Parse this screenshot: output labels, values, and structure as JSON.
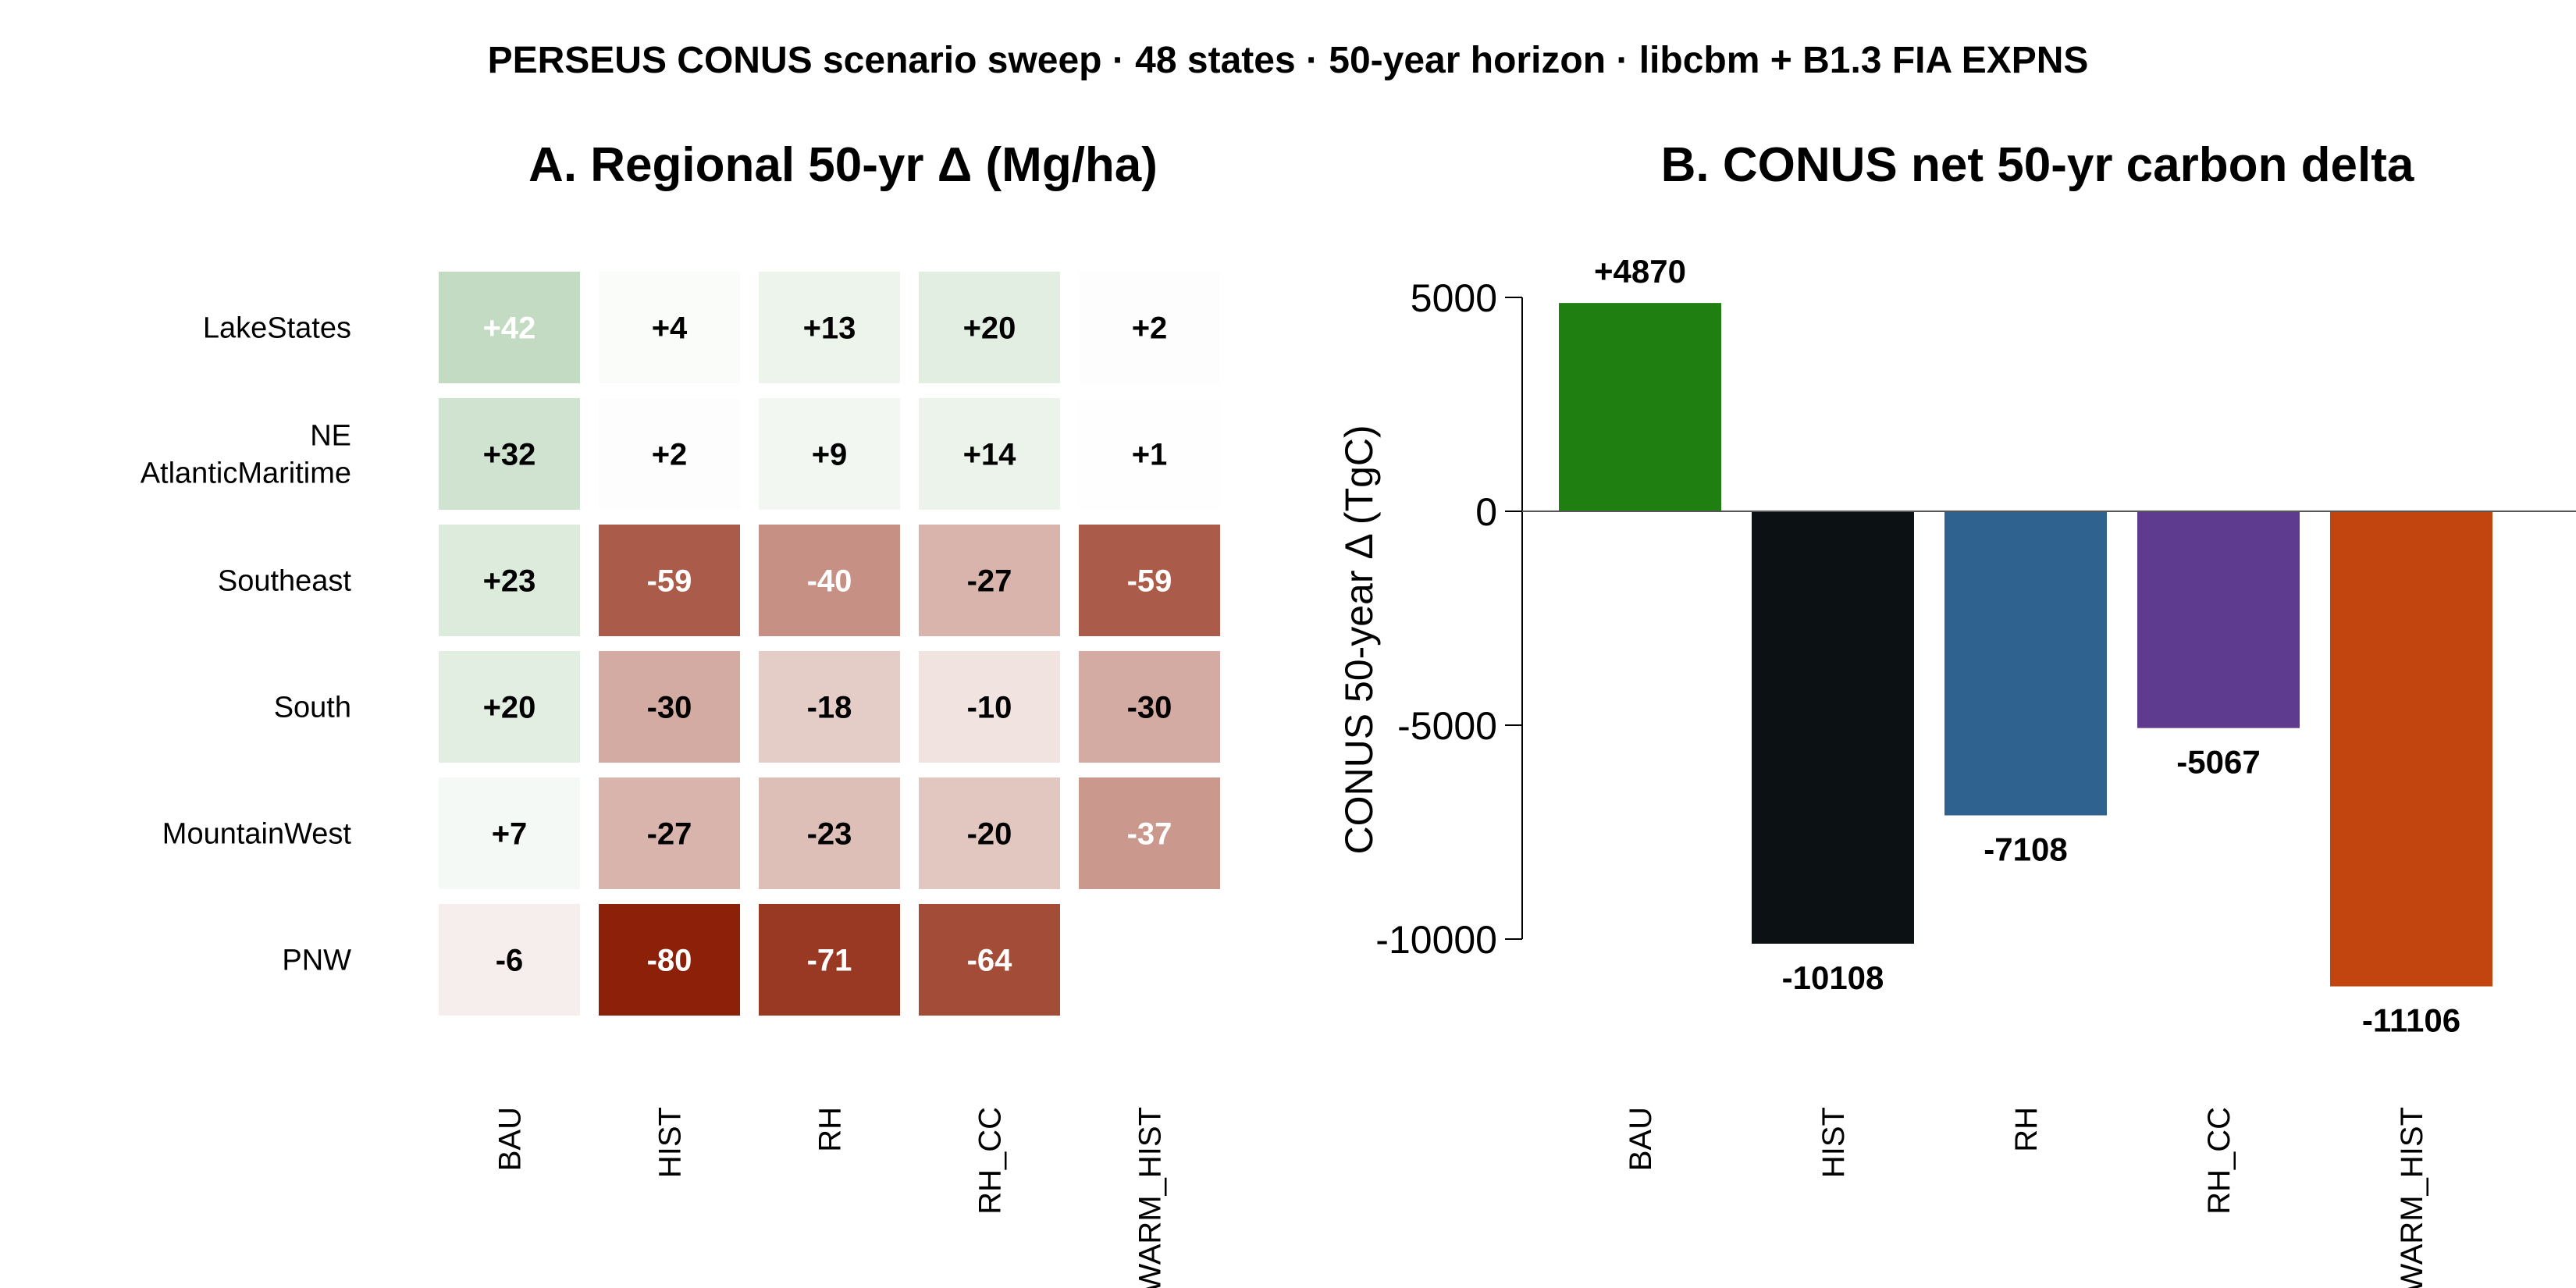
{
  "suptitle": "PERSEUS CONUS scenario sweep · 48 states · 50-year horizon · libcbm + B1.3 FIA EXPNS",
  "colors": {
    "pos_strong": "#8aba8a",
    "neg_strong": "#8c2008",
    "bar_colors": [
      "#1f7f11",
      "#0c1114",
      "#30628f",
      "#5f3b90",
      "#c2450f"
    ]
  },
  "chart_data": [
    {
      "type": "heatmap",
      "title": "A. Regional 50-yr Δ (Mg/ha)",
      "rows": [
        "LakeStates",
        "NE\nAtlanticMaritime",
        "Southeast",
        "South",
        "MountainWest",
        "PNW"
      ],
      "columns": [
        "BAU",
        "HIST",
        "RH",
        "RH_CC",
        "WARM_HIST"
      ],
      "values": [
        [
          42,
          4,
          13,
          20,
          2
        ],
        [
          32,
          2,
          9,
          14,
          1
        ],
        [
          23,
          -59,
          -40,
          -27,
          -59
        ],
        [
          20,
          -30,
          -18,
          -10,
          -30
        ],
        [
          7,
          -27,
          -23,
          -20,
          -37
        ],
        [
          -6,
          -80,
          -71,
          -64,
          null
        ]
      ],
      "labels": [
        [
          "+42",
          "+4",
          "+13",
          "+20",
          "+2"
        ],
        [
          "+32",
          "+2",
          "+9",
          "+14",
          "+1"
        ],
        [
          "+23",
          "-59",
          "-40",
          "-27",
          "-59"
        ],
        [
          "+20",
          "-30",
          "-18",
          "-10",
          "-30"
        ],
        [
          "+7",
          "-27",
          "-23",
          "-20",
          "-37"
        ],
        [
          "-6",
          "-80",
          "-71",
          "-64",
          ""
        ]
      ],
      "color_limit": 80
    },
    {
      "type": "bar",
      "title": "B. CONUS net 50-yr carbon delta",
      "categories": [
        "BAU",
        "HIST",
        "RH",
        "RH_CC",
        "WARM_HIST"
      ],
      "values": [
        4870,
        -10108,
        -7108,
        -5067,
        -11106
      ],
      "value_labels": [
        "+4870",
        "-10108",
        "-7108",
        "-5067",
        "-11106"
      ],
      "ylabel": "CONUS 50-year Δ (TgC)",
      "yticks": [
        5000,
        0,
        -5000,
        -10000
      ],
      "ylim": [
        -11700,
        5700
      ]
    }
  ]
}
